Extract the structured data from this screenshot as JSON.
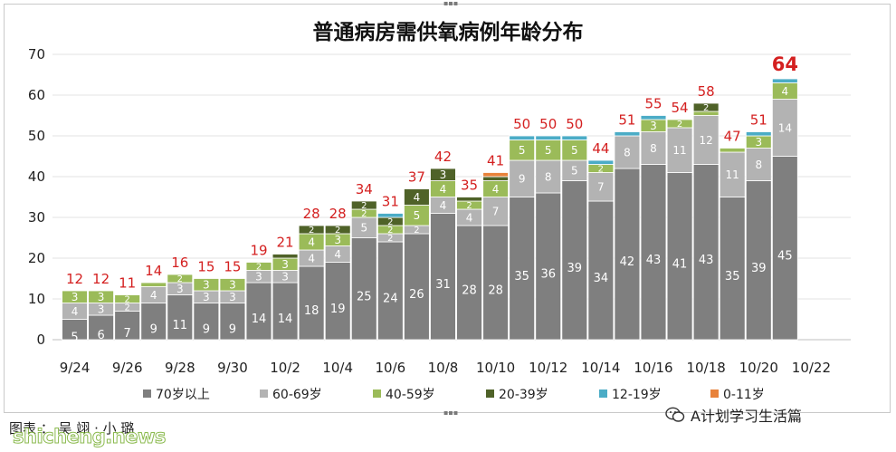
{
  "chart_data": {
    "type": "bar",
    "stacked": true,
    "title": "普通病房需供氧病例年龄分布",
    "xlabel": "",
    "ylabel": "",
    "ylim": [
      0,
      70
    ],
    "yticks": [
      0,
      10,
      20,
      30,
      40,
      50,
      60,
      70
    ],
    "grid": true,
    "legend_position": "bottom",
    "categories": [
      "9/24",
      "9/25",
      "9/26",
      "9/27",
      "9/28",
      "9/29",
      "9/30",
      "10/1",
      "10/2",
      "10/3",
      "10/4",
      "10/5",
      "10/6",
      "10/7",
      "10/8",
      "10/9",
      "10/10",
      "10/11",
      "10/12",
      "10/13",
      "10/14",
      "10/15",
      "10/16",
      "10/17",
      "10/18",
      "10/19",
      "10/20",
      "10/21"
    ],
    "x_tick_labels": [
      "9/24",
      "9/26",
      "9/28",
      "9/30",
      "10/2",
      "10/4",
      "10/6",
      "10/8",
      "10/10",
      "10/12",
      "10/14",
      "10/16",
      "10/18",
      "10/20",
      "10/22"
    ],
    "series": [
      {
        "name": "70岁以上",
        "color": "#7f7f7f",
        "values": [
          5,
          6,
          7,
          9,
          11,
          9,
          9,
          14,
          14,
          18,
          19,
          25,
          24,
          26,
          31,
          28,
          28,
          35,
          36,
          39,
          34,
          42,
          43,
          41,
          43,
          35,
          39,
          45
        ]
      },
      {
        "name": "60-69岁",
        "color": "#b3b3b3",
        "values": [
          4,
          3,
          2,
          4,
          3,
          3,
          3,
          3,
          3,
          4,
          4,
          5,
          2,
          2,
          4,
          4,
          7,
          9,
          8,
          5,
          7,
          8,
          8,
          11,
          12,
          11,
          8,
          14
        ]
      },
      {
        "name": "40-59岁",
        "color": "#9bbb59",
        "values": [
          3,
          3,
          2,
          1,
          2,
          3,
          3,
          2,
          3,
          4,
          3,
          2,
          2,
          5,
          4,
          2,
          4,
          5,
          5,
          5,
          2,
          0,
          3,
          2,
          1,
          1,
          3,
          4
        ]
      },
      {
        "name": "20-39岁",
        "color": "#4f6228",
        "values": [
          0,
          0,
          0,
          0,
          0,
          0,
          0,
          0,
          1,
          2,
          2,
          2,
          2,
          4,
          3,
          1,
          1,
          0,
          0,
          0,
          0,
          0,
          0,
          0,
          2,
          0,
          0,
          0
        ]
      },
      {
        "name": "12-19岁",
        "color": "#4bacc6",
        "values": [
          0,
          0,
          0,
          0,
          0,
          0,
          0,
          0,
          0,
          0,
          0,
          0,
          1,
          0,
          0,
          0,
          0,
          1,
          1,
          1,
          1,
          1,
          1,
          0,
          0,
          0,
          1,
          1
        ]
      },
      {
        "name": "0-11岁",
        "color": "#e8823a",
        "values": [
          0,
          0,
          0,
          0,
          0,
          0,
          0,
          0,
          0,
          0,
          0,
          0,
          0,
          0,
          0,
          0,
          1,
          0,
          0,
          0,
          0,
          0,
          0,
          0,
          0,
          0,
          0,
          0
        ]
      }
    ],
    "totals": [
      12,
      12,
      11,
      14,
      16,
      15,
      15,
      19,
      21,
      28,
      28,
      34,
      31,
      37,
      42,
      35,
      41,
      50,
      50,
      50,
      44,
      51,
      55,
      54,
      58,
      47,
      51,
      64
    ],
    "totals_color": "#d42020",
    "grid_color": "#e3e3e3"
  },
  "footer": {
    "credit": "图表 ：  吴  翊 · 小 璐",
    "wechat": "A计划学习生活篇",
    "watermark": "shicheng.news"
  }
}
